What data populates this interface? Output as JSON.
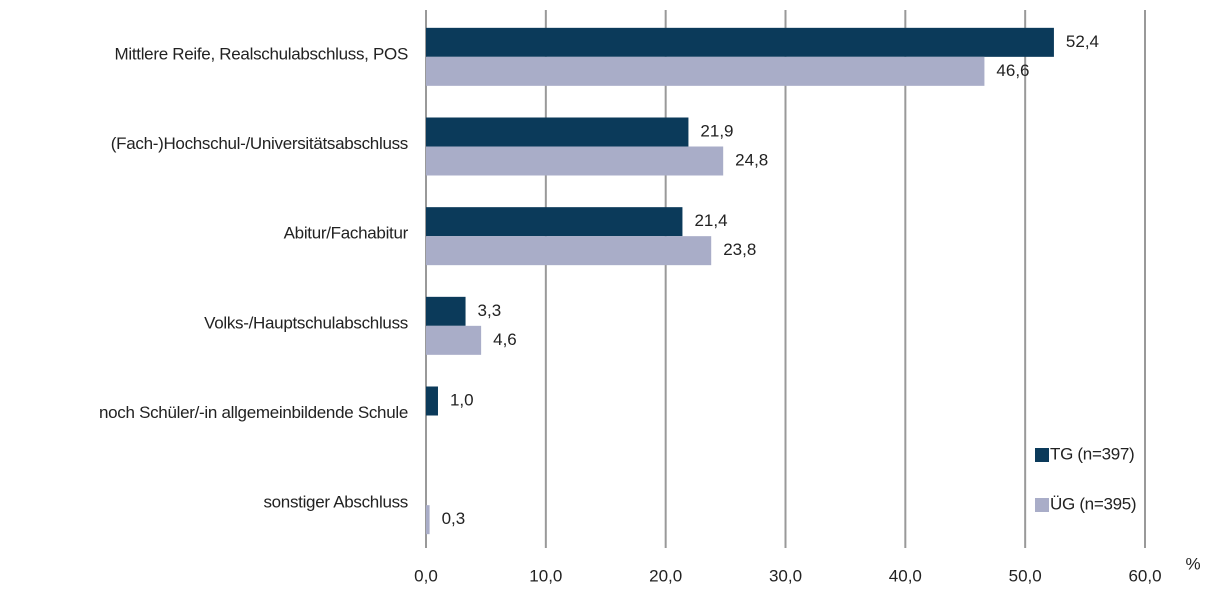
{
  "chart_data": {
    "type": "bar",
    "orientation": "horizontal",
    "categories": [
      "Mittlere Reife, Realschulabschluss, POS",
      "(Fach-)Hochschul-/Universitätsabschluss",
      "Abitur/Fachabitur",
      "Volks-/Hauptschulabschluss",
      "noch Schüler/-in allgemeinbildende Schule",
      "sonstiger Abschluss"
    ],
    "series": [
      {
        "name": "TG (n=397)",
        "color": "#0b3a5a",
        "values": [
          52.4,
          21.9,
          21.4,
          3.3,
          1.0,
          null
        ],
        "value_labels": [
          "52,4",
          "21,9",
          "21,4",
          "3,3",
          "1,0",
          null
        ]
      },
      {
        "name": "ÜG (n=395)",
        "color": "#a9adc8",
        "values": [
          46.6,
          24.8,
          23.8,
          4.6,
          null,
          0.3
        ],
        "value_labels": [
          "46,6",
          "24,8",
          "23,8",
          "4,6",
          null,
          "0,3"
        ]
      }
    ],
    "xlim": [
      0,
      60
    ],
    "xticks": [
      {
        "value": 0,
        "label": "0,0"
      },
      {
        "value": 10,
        "label": "10,0"
      },
      {
        "value": 20,
        "label": "20,0"
      },
      {
        "value": 30,
        "label": "30,0"
      },
      {
        "value": 40,
        "label": "40,0"
      },
      {
        "value": 50,
        "label": "50,0"
      },
      {
        "value": 60,
        "label": "60,0"
      }
    ],
    "x_label": "%",
    "grid": true,
    "legend": "lower right"
  }
}
